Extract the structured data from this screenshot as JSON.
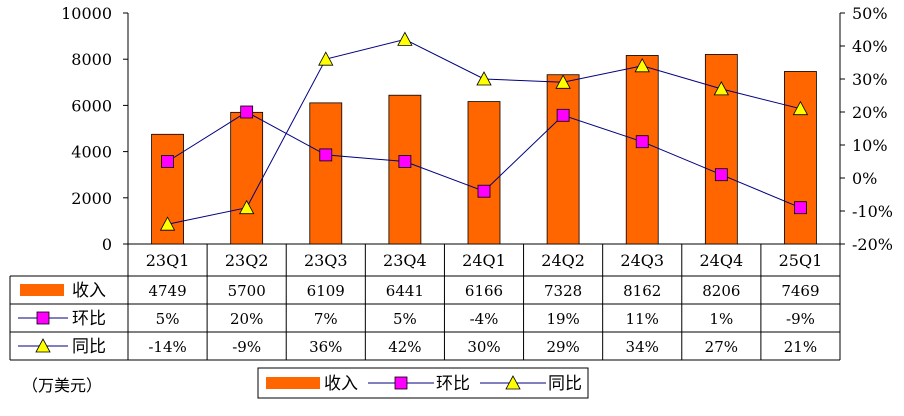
{
  "unit_note": "（万美元）",
  "chart_data": {
    "type": "bar",
    "categories": [
      "23Q1",
      "23Q2",
      "23Q3",
      "23Q4",
      "24Q1",
      "24Q2",
      "24Q3",
      "24Q4",
      "25Q1"
    ],
    "series": [
      {
        "name": "收入",
        "kind": "bar",
        "axis": "left",
        "color": "#ff6600",
        "values": [
          4749,
          5700,
          6109,
          6441,
          6166,
          7328,
          8162,
          8206,
          7469
        ]
      },
      {
        "name": "环比",
        "kind": "line",
        "axis": "right",
        "color": "#000080",
        "marker": "square",
        "marker_color": "#ff00ff",
        "values": [
          5,
          20,
          7,
          5,
          -4,
          19,
          11,
          1,
          -9
        ]
      },
      {
        "name": "同比",
        "kind": "line",
        "axis": "right",
        "color": "#000080",
        "marker": "triangle",
        "marker_color": "#ffff00",
        "values": [
          -14,
          -9,
          36,
          42,
          30,
          29,
          34,
          27,
          21
        ]
      }
    ],
    "left_axis": {
      "range": [
        0,
        10000
      ],
      "ticks": [
        "0",
        "2000",
        "4000",
        "6000",
        "8000",
        "10000"
      ]
    },
    "right_axis": {
      "range": [
        -20,
        50
      ],
      "ticks": [
        "-20%",
        "-10%",
        "0%",
        "10%",
        "20%",
        "30%",
        "40%",
        "50%"
      ]
    },
    "table_rows": [
      {
        "label": "收入",
        "cells": [
          "4749",
          "5700",
          "6109",
          "6441",
          "6166",
          "7328",
          "8162",
          "8206",
          "7469"
        ]
      },
      {
        "label": "环比",
        "cells": [
          "5%",
          "20%",
          "7%",
          "5%",
          "-4%",
          "19%",
          "11%",
          "1%",
          "-9%"
        ]
      },
      {
        "label": "同比",
        "cells": [
          "-14%",
          "-9%",
          "36%",
          "42%",
          "30%",
          "29%",
          "34%",
          "27%",
          "21%"
        ]
      }
    ],
    "legend": [
      "收入",
      "环比",
      "同比"
    ],
    "grid": false
  }
}
